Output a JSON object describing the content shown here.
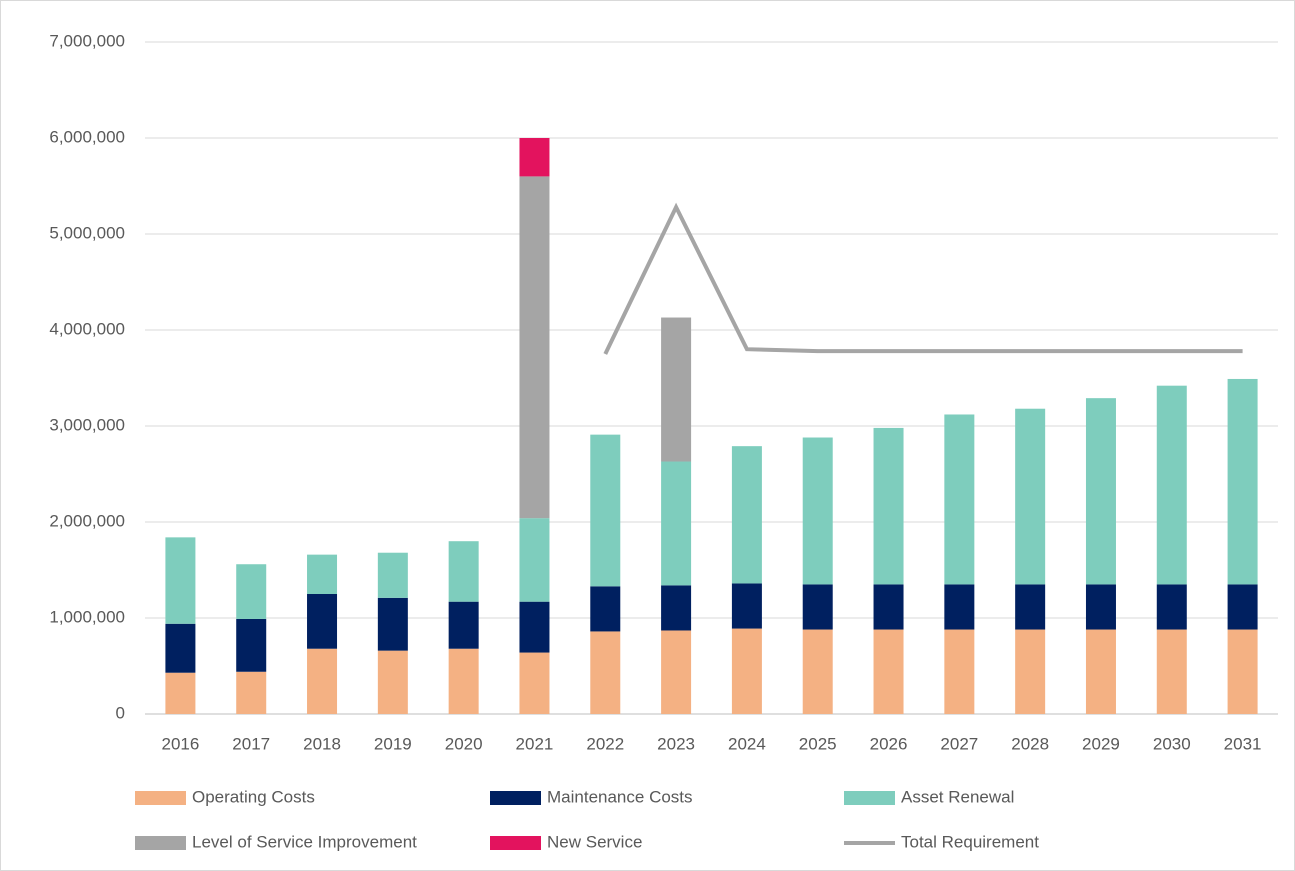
{
  "chart_data": {
    "type": "bar",
    "stacked": true,
    "legend": "bottom",
    "grid": true,
    "categories": [
      "2016",
      "2017",
      "2018",
      "2019",
      "2020",
      "2021",
      "2022",
      "2023",
      "2024",
      "2025",
      "2026",
      "2027",
      "2028",
      "2029",
      "2030",
      "2031"
    ],
    "series": [
      {
        "name": "Operating Costs",
        "color": "#f4b183",
        "values": [
          430000,
          440000,
          680000,
          660000,
          680000,
          640000,
          860000,
          870000,
          890000,
          880000,
          880000,
          880000,
          880000,
          880000,
          880000,
          880000
        ]
      },
      {
        "name": "Maintenance Costs",
        "color": "#002060",
        "values": [
          510000,
          550000,
          570000,
          550000,
          490000,
          530000,
          470000,
          470000,
          470000,
          470000,
          470000,
          470000,
          470000,
          470000,
          470000,
          470000
        ]
      },
      {
        "name": "Asset Renewal",
        "color": "#7ecdbd",
        "values": [
          900000,
          570000,
          410000,
          470000,
          630000,
          870000,
          1580000,
          1290000,
          1430000,
          1530000,
          1630000,
          1770000,
          1830000,
          1940000,
          2070000,
          2140000
        ]
      },
      {
        "name": "Level of Service Improvement",
        "color": "#a5a5a5",
        "values": [
          null,
          null,
          null,
          null,
          null,
          3560000,
          null,
          1500000,
          null,
          null,
          null,
          null,
          null,
          null,
          null,
          null
        ]
      },
      {
        "name": "New Service",
        "color": "#e3135e",
        "values": [
          null,
          null,
          null,
          null,
          null,
          400000,
          null,
          null,
          null,
          null,
          null,
          null,
          null,
          null,
          null,
          null
        ]
      },
      {
        "name": "Total Requirement",
        "color": "#a5a5a5",
        "type": "line",
        "values": [
          null,
          null,
          null,
          null,
          null,
          null,
          3750000,
          5280000,
          3800000,
          3780000,
          3780000,
          3780000,
          3780000,
          3780000,
          3780000,
          3780000
        ]
      }
    ],
    "ylim": [
      0,
      7000000
    ],
    "yticks": [
      0,
      {
        "value": 1000000,
        "label": "1,000,000"
      },
      {
        "value": 2000000,
        "label": "2,000,000"
      },
      {
        "value": 3000000,
        "label": "3,000,000"
      },
      {
        "value": 4000000,
        "label": "4,000,000"
      },
      {
        "value": 5000000,
        "label": "5,000,000"
      },
      {
        "value": 6000000,
        "label": "6,000,000"
      },
      {
        "value": 7000000,
        "label": "7,000,000"
      }
    ]
  }
}
